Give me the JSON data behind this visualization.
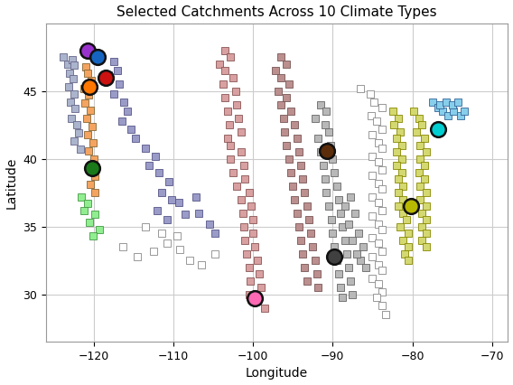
{
  "title": "Selected Catchments Across 10 Climate Types",
  "xlabel": "Longitude",
  "ylabel": "Latitude",
  "xlim": [
    -126,
    -68
  ],
  "ylim": [
    26.5,
    50.0
  ],
  "xticks": [
    -120,
    -110,
    -100,
    -90,
    -80,
    -70
  ],
  "yticks": [
    30,
    35,
    40,
    45
  ],
  "selected_catchments": [
    {
      "lon": -120.8,
      "lat": 48.0,
      "color": "#9932cc"
    },
    {
      "lon": -119.5,
      "lat": 47.5,
      "color": "#1565c0"
    },
    {
      "lon": -120.5,
      "lat": 45.3,
      "color": "#ff7700"
    },
    {
      "lon": -118.5,
      "lat": 46.0,
      "color": "#cc1111"
    },
    {
      "lon": -120.2,
      "lat": 39.3,
      "color": "#1a7a1a"
    },
    {
      "lon": -90.7,
      "lat": 40.6,
      "color": "#5c2d0a"
    },
    {
      "lon": -99.8,
      "lat": 29.7,
      "color": "#ff69b4"
    },
    {
      "lon": -89.8,
      "lat": 32.8,
      "color": "#404040"
    },
    {
      "lon": -80.2,
      "lat": 36.5,
      "color": "#b8b800"
    },
    {
      "lon": -76.8,
      "lat": 42.2,
      "color": "#00ced1"
    }
  ],
  "point_groups": [
    {
      "color": "#aab4cc",
      "edge": "#666688",
      "points": [
        [
          -123.8,
          47.5
        ],
        [
          -123.2,
          47.0
        ],
        [
          -122.7,
          47.3
        ],
        [
          -122.4,
          46.9
        ],
        [
          -123.0,
          46.3
        ],
        [
          -122.6,
          45.9
        ],
        [
          -123.1,
          45.3
        ],
        [
          -122.5,
          44.8
        ],
        [
          -122.9,
          44.2
        ],
        [
          -122.3,
          43.7
        ],
        [
          -122.8,
          43.0
        ],
        [
          -122.1,
          42.5
        ],
        [
          -121.9,
          41.9
        ],
        [
          -122.5,
          41.3
        ],
        [
          -121.7,
          40.7
        ]
      ]
    },
    {
      "color": "#f4a460",
      "edge": "#886633",
      "points": [
        [
          -121.0,
          46.8
        ],
        [
          -120.7,
          46.3
        ],
        [
          -120.3,
          45.8
        ],
        [
          -121.2,
          45.2
        ],
        [
          -120.6,
          44.7
        ],
        [
          -121.1,
          44.1
        ],
        [
          -120.4,
          43.6
        ],
        [
          -120.9,
          43.0
        ],
        [
          -120.2,
          42.4
        ],
        [
          -120.7,
          41.8
        ],
        [
          -120.1,
          41.2
        ],
        [
          -120.6,
          40.6
        ],
        [
          -120.0,
          40.0
        ],
        [
          -120.5,
          39.3
        ],
        [
          -119.9,
          38.7
        ],
        [
          -120.4,
          38.1
        ],
        [
          -119.8,
          37.5
        ]
      ]
    },
    {
      "color": "#90ee90",
      "edge": "#449944",
      "points": [
        [
          -121.5,
          37.2
        ],
        [
          -120.8,
          36.7
        ],
        [
          -121.2,
          36.2
        ],
        [
          -119.8,
          35.9
        ],
        [
          -120.5,
          35.3
        ],
        [
          -119.3,
          34.8
        ],
        [
          -120.1,
          34.3
        ]
      ]
    },
    {
      "color": "#9b9bc8",
      "edge": "#555588",
      "points": [
        [
          -117.5,
          47.2
        ],
        [
          -117.0,
          46.5
        ],
        [
          -118.2,
          46.2
        ],
        [
          -116.8,
          45.5
        ],
        [
          -117.5,
          44.8
        ],
        [
          -116.2,
          44.2
        ],
        [
          -115.8,
          43.5
        ],
        [
          -116.5,
          42.8
        ],
        [
          -115.3,
          42.2
        ],
        [
          -114.8,
          41.5
        ],
        [
          -113.5,
          40.8
        ],
        [
          -112.3,
          40.2
        ],
        [
          -113.0,
          39.5
        ],
        [
          -111.8,
          39.0
        ],
        [
          -110.5,
          38.3
        ],
        [
          -111.5,
          37.5
        ],
        [
          -110.2,
          37.0
        ],
        [
          -112.0,
          36.2
        ],
        [
          -110.8,
          35.5
        ],
        [
          -109.3,
          36.8
        ],
        [
          -108.5,
          35.9
        ],
        [
          -107.2,
          37.2
        ],
        [
          -106.8,
          36.0
        ],
        [
          -105.5,
          35.2
        ],
        [
          -104.8,
          34.5
        ]
      ]
    },
    {
      "color": "#ffffff",
      "edge": "#888888",
      "points": [
        [
          -116.3,
          33.5
        ],
        [
          -114.5,
          32.8
        ],
        [
          -112.5,
          33.2
        ],
        [
          -110.8,
          33.8
        ],
        [
          -109.2,
          33.3
        ],
        [
          -108.0,
          32.5
        ],
        [
          -106.5,
          32.2
        ],
        [
          -104.8,
          33.0
        ],
        [
          -113.5,
          35.0
        ],
        [
          -111.5,
          34.5
        ],
        [
          -109.5,
          34.3
        ]
      ]
    },
    {
      "color": "#d8a0a0",
      "edge": "#885555",
      "points": [
        [
          -103.5,
          48.0
        ],
        [
          -102.8,
          47.5
        ],
        [
          -104.2,
          47.0
        ],
        [
          -103.5,
          46.5
        ],
        [
          -102.5,
          46.0
        ],
        [
          -103.8,
          45.5
        ],
        [
          -102.2,
          45.0
        ],
        [
          -103.5,
          44.5
        ],
        [
          -102.0,
          44.0
        ],
        [
          -103.2,
          43.5
        ],
        [
          -101.8,
          43.0
        ],
        [
          -103.0,
          42.5
        ],
        [
          -101.5,
          42.0
        ],
        [
          -103.2,
          41.5
        ],
        [
          -102.8,
          41.0
        ],
        [
          -101.5,
          40.5
        ],
        [
          -102.8,
          40.0
        ],
        [
          -101.2,
          39.5
        ],
        [
          -102.5,
          39.0
        ],
        [
          -101.0,
          38.5
        ],
        [
          -102.0,
          38.0
        ],
        [
          -100.5,
          37.5
        ],
        [
          -101.5,
          37.0
        ],
        [
          -100.2,
          36.5
        ],
        [
          -101.3,
          36.0
        ],
        [
          -100.0,
          35.5
        ],
        [
          -101.2,
          35.0
        ],
        [
          -100.0,
          34.5
        ],
        [
          -101.0,
          34.0
        ],
        [
          -99.8,
          33.5
        ],
        [
          -100.8,
          33.0
        ],
        [
          -99.5,
          32.5
        ],
        [
          -100.5,
          32.0
        ],
        [
          -99.2,
          31.5
        ],
        [
          -100.3,
          31.0
        ],
        [
          -99.0,
          30.5
        ],
        [
          -100.5,
          30.0
        ],
        [
          -99.5,
          29.5
        ],
        [
          -98.5,
          29.0
        ]
      ]
    },
    {
      "color": "#bc8f8f",
      "edge": "#775555",
      "points": [
        [
          -96.5,
          47.5
        ],
        [
          -95.8,
          47.0
        ],
        [
          -97.2,
          46.5
        ],
        [
          -96.5,
          46.0
        ],
        [
          -95.5,
          45.5
        ],
        [
          -96.8,
          45.0
        ],
        [
          -95.8,
          44.5
        ],
        [
          -96.5,
          44.0
        ],
        [
          -95.2,
          43.5
        ],
        [
          -96.2,
          43.0
        ],
        [
          -94.8,
          42.5
        ],
        [
          -96.0,
          42.0
        ],
        [
          -94.5,
          41.5
        ],
        [
          -95.8,
          41.0
        ],
        [
          -94.2,
          40.5
        ],
        [
          -95.5,
          40.0
        ],
        [
          -94.0,
          39.5
        ],
        [
          -95.2,
          39.0
        ],
        [
          -93.8,
          38.5
        ],
        [
          -95.0,
          38.0
        ],
        [
          -93.5,
          37.5
        ],
        [
          -94.8,
          37.0
        ],
        [
          -93.2,
          36.5
        ],
        [
          -94.5,
          36.0
        ],
        [
          -93.0,
          35.5
        ],
        [
          -94.2,
          35.0
        ],
        [
          -92.8,
          34.5
        ],
        [
          -94.0,
          34.0
        ],
        [
          -92.5,
          33.5
        ],
        [
          -93.8,
          33.0
        ],
        [
          -92.2,
          32.5
        ],
        [
          -93.5,
          32.0
        ],
        [
          -92.0,
          31.5
        ],
        [
          -93.2,
          31.0
        ],
        [
          -91.8,
          30.5
        ]
      ]
    },
    {
      "color": "#b8b8b8",
      "edge": "#666666",
      "points": [
        [
          -91.5,
          44.0
        ],
        [
          -90.8,
          43.5
        ],
        [
          -92.2,
          43.0
        ],
        [
          -91.0,
          42.5
        ],
        [
          -90.5,
          42.0
        ],
        [
          -91.8,
          41.5
        ],
        [
          -90.3,
          41.0
        ],
        [
          -91.5,
          40.5
        ],
        [
          -90.0,
          40.0
        ],
        [
          -91.2,
          39.5
        ],
        [
          -89.8,
          39.0
        ],
        [
          -91.0,
          38.5
        ],
        [
          -89.5,
          38.0
        ],
        [
          -90.8,
          37.5
        ],
        [
          -89.2,
          37.0
        ],
        [
          -90.5,
          36.5
        ],
        [
          -89.0,
          36.0
        ],
        [
          -90.2,
          35.5
        ],
        [
          -88.8,
          35.0
        ],
        [
          -90.0,
          34.5
        ],
        [
          -88.5,
          34.0
        ],
        [
          -89.8,
          33.5
        ],
        [
          -88.2,
          33.0
        ],
        [
          -89.5,
          32.5
        ],
        [
          -88.0,
          32.0
        ],
        [
          -89.2,
          31.5
        ],
        [
          -87.8,
          31.0
        ],
        [
          -89.0,
          30.5
        ],
        [
          -87.5,
          30.0
        ],
        [
          -88.8,
          29.8
        ],
        [
          -86.5,
          32.5
        ],
        [
          -85.8,
          32.0
        ],
        [
          -87.0,
          33.0
        ],
        [
          -86.2,
          33.5
        ],
        [
          -87.5,
          34.0
        ],
        [
          -86.8,
          34.5
        ],
        [
          -88.0,
          35.2
        ],
        [
          -87.2,
          36.0
        ],
        [
          -88.5,
          36.5
        ],
        [
          -87.8,
          37.2
        ]
      ]
    },
    {
      "color": "#ffffff",
      "edge": "#888888",
      "points": [
        [
          -86.5,
          45.2
        ],
        [
          -85.3,
          44.8
        ],
        [
          -84.8,
          44.2
        ],
        [
          -83.8,
          43.8
        ],
        [
          -85.2,
          43.2
        ],
        [
          -84.5,
          42.8
        ],
        [
          -83.8,
          42.2
        ],
        [
          -85.0,
          41.8
        ],
        [
          -84.3,
          41.2
        ],
        [
          -83.8,
          40.8
        ],
        [
          -85.0,
          40.2
        ],
        [
          -84.3,
          39.8
        ],
        [
          -83.8,
          39.2
        ],
        [
          -85.0,
          38.8
        ],
        [
          -84.3,
          38.2
        ],
        [
          -83.8,
          37.8
        ],
        [
          -85.0,
          37.2
        ],
        [
          -84.3,
          36.8
        ],
        [
          -83.8,
          36.2
        ],
        [
          -85.0,
          35.8
        ],
        [
          -84.3,
          35.2
        ],
        [
          -83.8,
          34.8
        ],
        [
          -85.0,
          34.2
        ],
        [
          -84.3,
          33.8
        ],
        [
          -83.8,
          33.2
        ],
        [
          -85.0,
          32.8
        ],
        [
          -84.3,
          32.2
        ],
        [
          -83.8,
          31.8
        ],
        [
          -85.0,
          31.2
        ],
        [
          -84.3,
          30.8
        ],
        [
          -83.8,
          30.2
        ],
        [
          -84.5,
          29.8
        ],
        [
          -83.8,
          29.2
        ],
        [
          -83.3,
          28.5
        ]
      ]
    },
    {
      "color": "#d4d870",
      "edge": "#888800",
      "points": [
        [
          -82.5,
          43.5
        ],
        [
          -81.8,
          43.0
        ],
        [
          -82.3,
          42.5
        ],
        [
          -81.5,
          42.0
        ],
        [
          -82.0,
          41.5
        ],
        [
          -81.3,
          41.0
        ],
        [
          -82.0,
          40.5
        ],
        [
          -81.3,
          40.0
        ],
        [
          -82.0,
          39.5
        ],
        [
          -81.3,
          39.0
        ],
        [
          -81.8,
          38.5
        ],
        [
          -81.2,
          38.0
        ],
        [
          -81.8,
          37.5
        ],
        [
          -81.2,
          37.0
        ],
        [
          -81.8,
          36.5
        ],
        [
          -81.2,
          36.0
        ],
        [
          -80.8,
          35.5
        ],
        [
          -81.5,
          35.0
        ],
        [
          -80.5,
          34.5
        ],
        [
          -81.2,
          34.0
        ],
        [
          -80.5,
          33.5
        ],
        [
          -81.0,
          33.0
        ],
        [
          -80.5,
          32.5
        ],
        [
          -79.8,
          43.5
        ],
        [
          -79.2,
          43.0
        ],
        [
          -78.8,
          42.5
        ],
        [
          -79.5,
          42.0
        ],
        [
          -78.5,
          41.5
        ],
        [
          -79.0,
          41.0
        ],
        [
          -78.2,
          40.5
        ],
        [
          -79.0,
          40.0
        ],
        [
          -78.5,
          39.5
        ],
        [
          -79.2,
          39.0
        ],
        [
          -78.5,
          38.5
        ],
        [
          -79.0,
          38.0
        ],
        [
          -78.3,
          37.5
        ],
        [
          -79.0,
          37.0
        ],
        [
          -78.3,
          36.5
        ],
        [
          -78.8,
          36.0
        ],
        [
          -78.2,
          35.5
        ],
        [
          -78.8,
          35.0
        ],
        [
          -78.2,
          34.5
        ],
        [
          -78.8,
          34.0
        ],
        [
          -78.2,
          33.5
        ]
      ]
    },
    {
      "color": "#87ceeb",
      "edge": "#336699",
      "points": [
        [
          -77.5,
          44.2
        ],
        [
          -76.8,
          43.8
        ],
        [
          -76.2,
          43.5
        ],
        [
          -75.5,
          43.2
        ],
        [
          -74.8,
          43.5
        ],
        [
          -74.0,
          43.2
        ],
        [
          -73.5,
          43.5
        ],
        [
          -76.5,
          44.0
        ],
        [
          -75.8,
          44.2
        ],
        [
          -75.0,
          44.0
        ],
        [
          -74.3,
          44.2
        ]
      ]
    }
  ]
}
